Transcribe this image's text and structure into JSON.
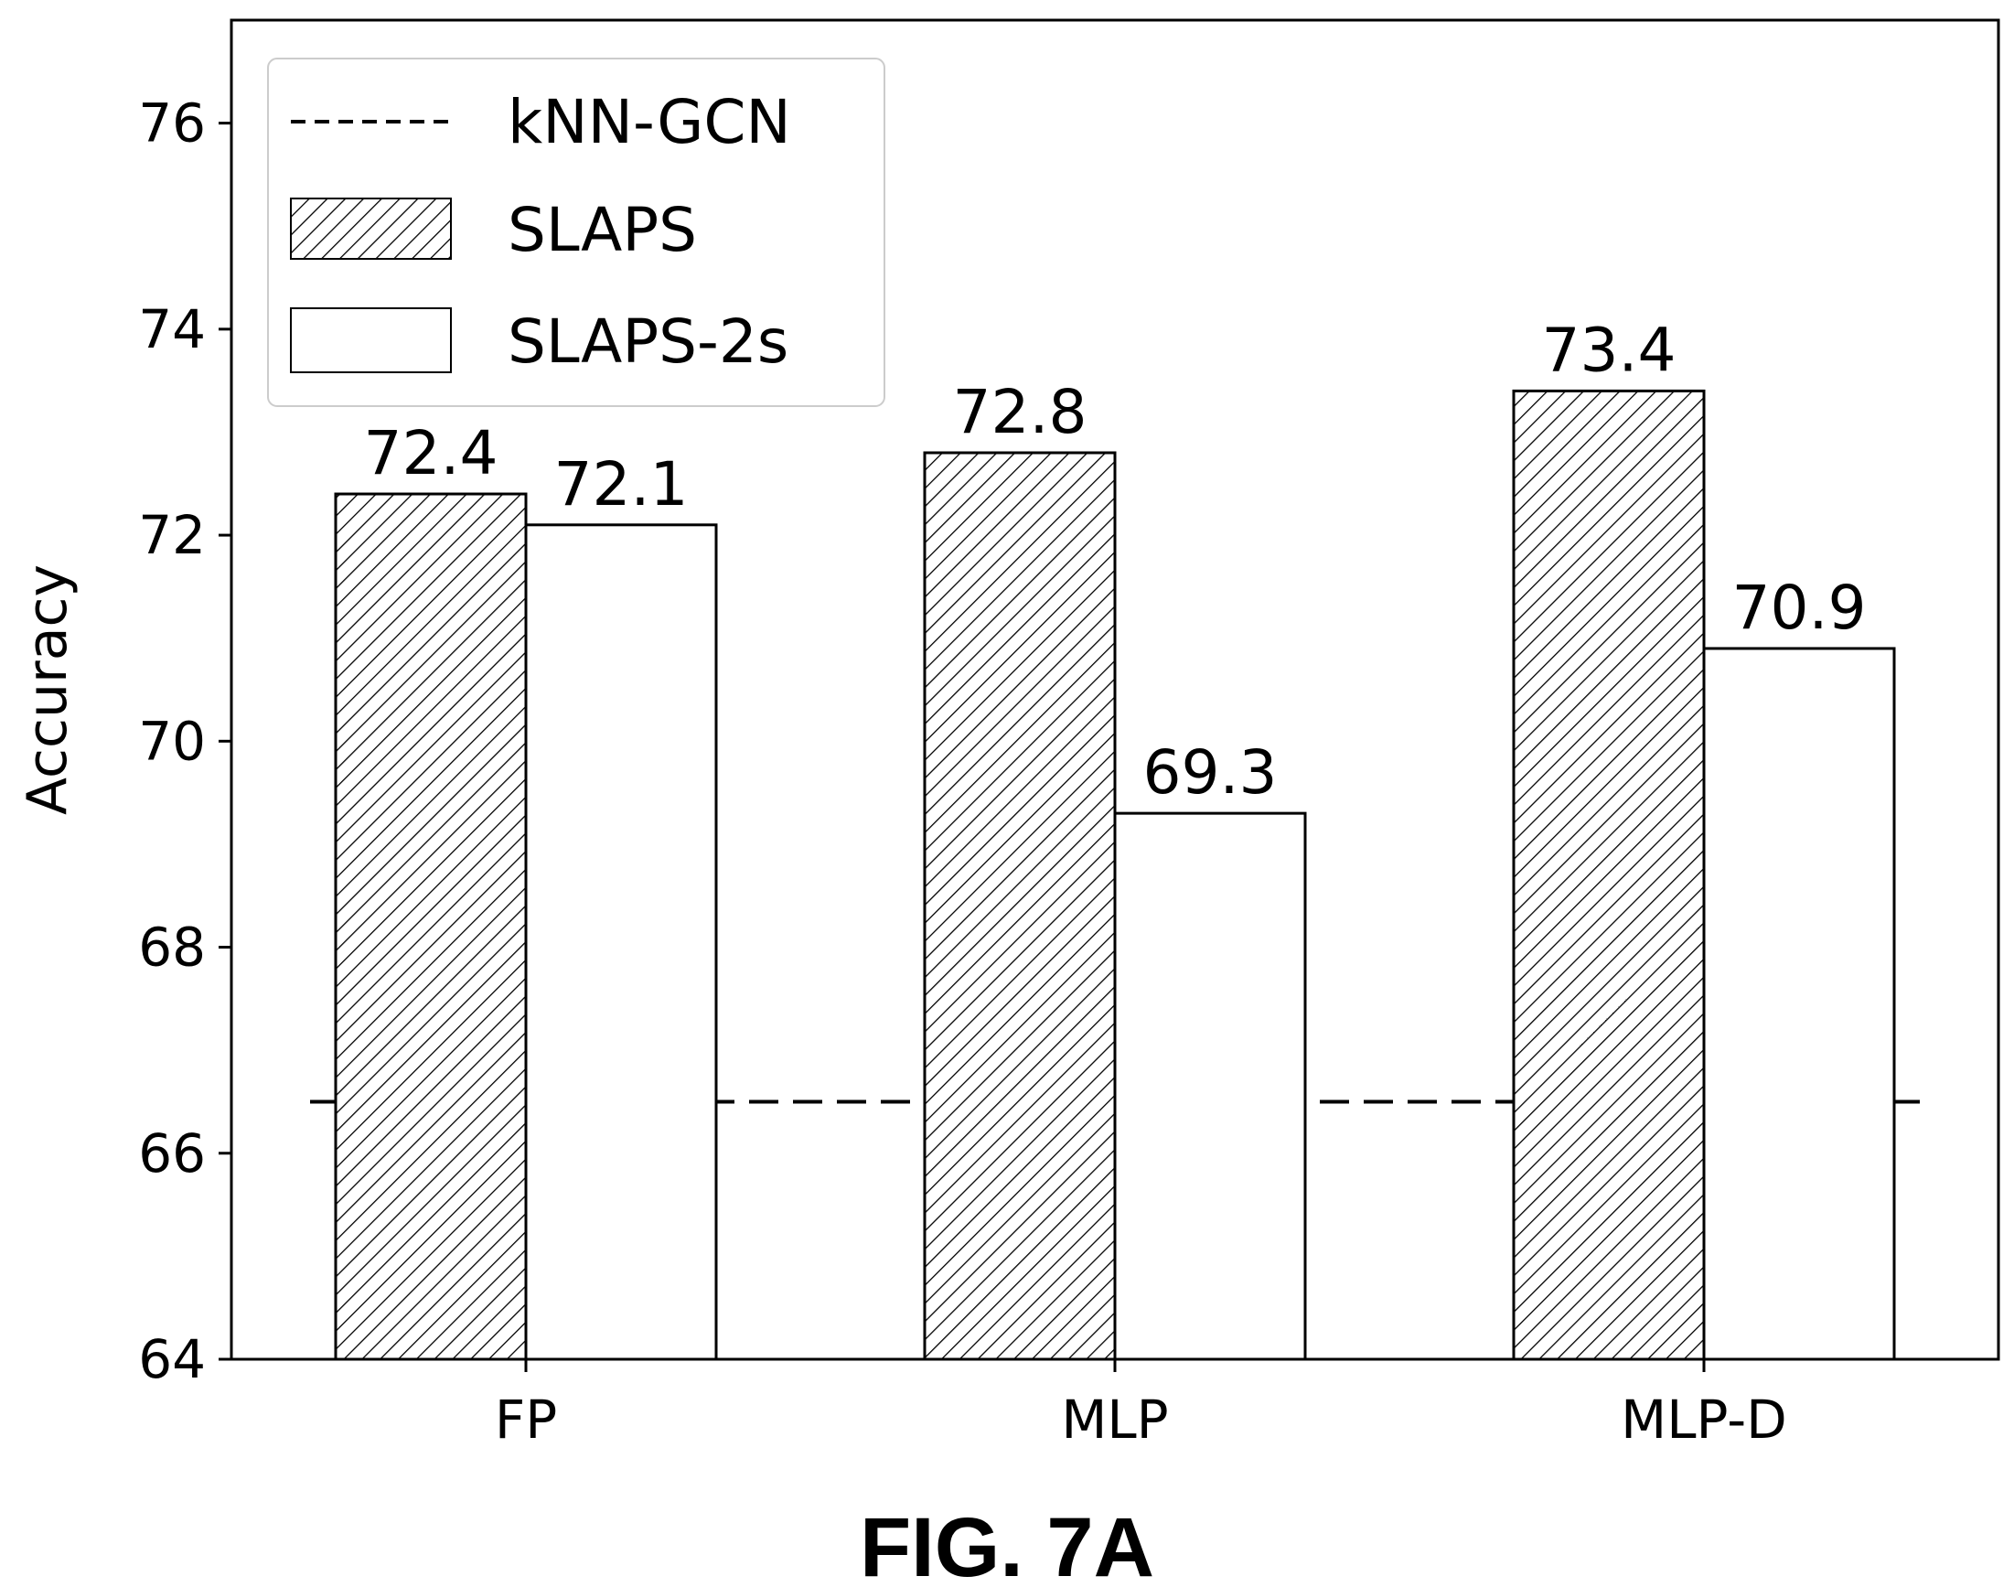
{
  "chart_data": {
    "type": "bar",
    "categories": [
      "FP",
      "MLP",
      "MLP-D"
    ],
    "series": [
      {
        "name": "SLAPS",
        "values": [
          72.4,
          72.8,
          73.4
        ],
        "pattern": "hatched",
        "data_labels": [
          "72.4",
          "72.8",
          "73.4"
        ]
      },
      {
        "name": "SLAPS-2s",
        "values": [
          72.1,
          69.3,
          70.9
        ],
        "pattern": "white",
        "data_labels": [
          "72.1",
          "69.3",
          "70.9"
        ]
      }
    ],
    "reference_line": {
      "name": "kNN-GCN",
      "value": 66.5,
      "style": "dashed"
    },
    "ylabel": "Accuracy",
    "xlabel": "",
    "ylim": [
      64,
      77
    ],
    "yticks": [
      64,
      66,
      68,
      70,
      72,
      74,
      76
    ],
    "ytick_labels": [
      "64",
      "66",
      "68",
      "70",
      "72",
      "74",
      "76"
    ],
    "legend_position": "top-left",
    "grid": false,
    "caption": "FIG. 7A"
  },
  "colors": {
    "ink": "#000000",
    "background": "#ffffff",
    "legend_border": "#cccccc"
  }
}
